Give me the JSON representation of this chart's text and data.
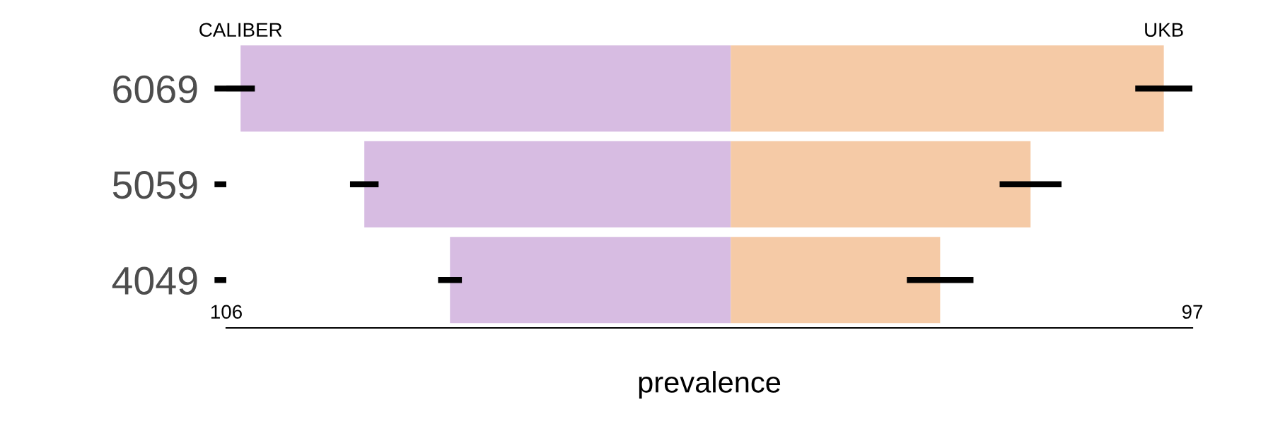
{
  "chart_data": {
    "type": "bar",
    "orientation": "horizontal",
    "stacked": true,
    "xlabel": "prevalence",
    "categories": [
      "6069",
      "5059",
      "4049"
    ],
    "series": [
      {
        "name": "CALIBER",
        "color": "#d7bce2",
        "values": [
          -103,
          -77,
          -59
        ],
        "errors": [
          3,
          3,
          2.5
        ]
      },
      {
        "name": "UKB",
        "color": "#f5caa6",
        "values": [
          91,
          63,
          44
        ],
        "errors": [
          6,
          6.5,
          7
        ]
      }
    ],
    "xlim": [
      -106,
      97
    ],
    "xticks": [
      {
        "value": -106,
        "label": "106"
      },
      97
    ],
    "grid": false,
    "legend": false
  }
}
